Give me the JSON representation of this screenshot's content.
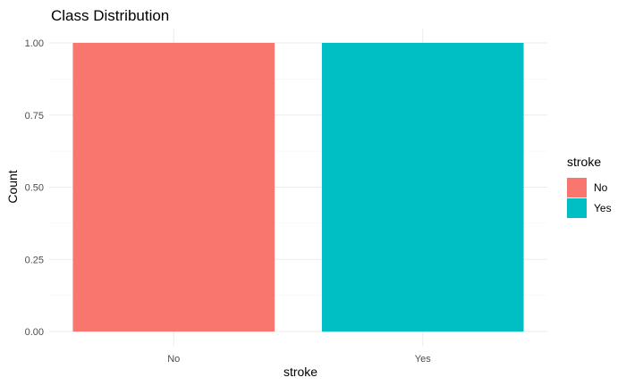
{
  "chart_data": {
    "type": "bar",
    "title": "Class Distribution",
    "xlabel": "stroke",
    "ylabel": "Count",
    "categories": [
      "No",
      "Yes"
    ],
    "values": [
      1,
      1
    ],
    "colors": [
      "#F8766D",
      "#00BFC4"
    ],
    "ylim": [
      0,
      1
    ],
    "yticks": [
      "0.00",
      "0.25",
      "0.50",
      "0.75",
      "1.00"
    ],
    "grid": true,
    "legend": {
      "title": "stroke",
      "placement": "right",
      "entries": [
        "No",
        "Yes"
      ]
    }
  }
}
